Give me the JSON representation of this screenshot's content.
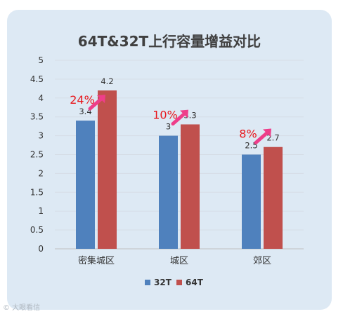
{
  "chart_data": {
    "type": "bar",
    "title": "64T&32T上行容量增益对比",
    "categories": [
      "密集城区",
      "城区",
      "郊区"
    ],
    "series": [
      {
        "name": "32T",
        "values": [
          3.4,
          3,
          2.5
        ],
        "color": "#4f81bd"
      },
      {
        "name": "64T",
        "values": [
          4.2,
          3.3,
          2.7
        ],
        "color": "#c0504d"
      }
    ],
    "value_labels": [
      [
        "3.4",
        "4.2"
      ],
      [
        "3",
        "3.3"
      ],
      [
        "2.5",
        "2.7"
      ]
    ],
    "annotations": [
      "24%",
      "10%",
      "8%"
    ],
    "annotation_color": "#e8161c",
    "arrow_color": "#ee3e8a",
    "yticks": [
      "0",
      "0.5",
      "1",
      "1.5",
      "2",
      "2.5",
      "3",
      "3.5",
      "4",
      "4.5",
      "5"
    ],
    "ylim": [
      0,
      5
    ],
    "grid": true,
    "legend_position": "bottom",
    "xlabel": "",
    "ylabel": ""
  },
  "watermark": "© 大眼看信"
}
